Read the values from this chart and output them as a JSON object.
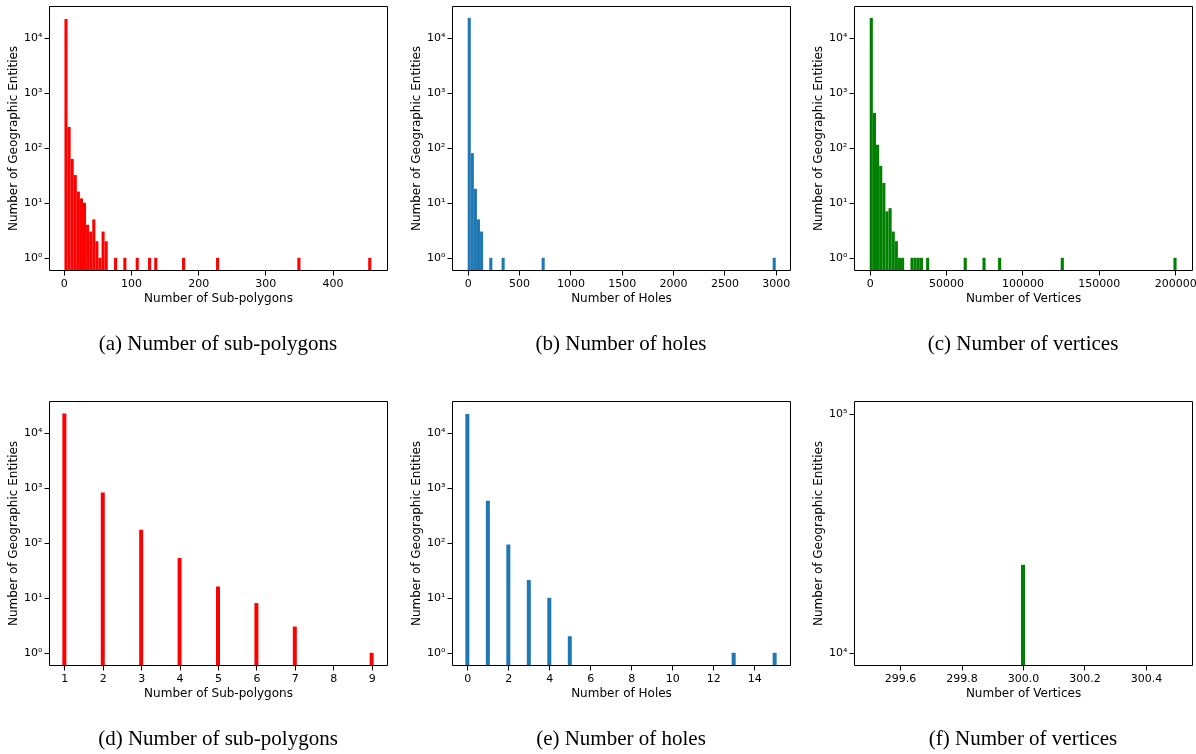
{
  "chart_data": [
    {
      "type": "histogram",
      "title": "(a) Number of sub-polygons",
      "xlabel": "Number of Sub-polygons",
      "ylabel": "Number of Geographic Entities",
      "color": "#ff0000",
      "log": true,
      "bins": [
        1,
        5.6,
        10.2,
        14.8,
        19.4,
        24,
        28.6,
        33.2,
        37.8,
        42.4,
        47,
        51.6,
        56.2,
        60.8,
        65.4,
        74.8,
        79.4,
        88.6,
        93.2,
        107,
        111.6,
        125.4,
        130,
        134.6,
        139.2,
        176,
        180.6,
        226.6,
        231.2,
        347.6,
        352.2,
        453,
        457.6
      ],
      "values": [
        22000,
        240,
        63,
        32,
        16,
        12,
        10,
        4,
        3,
        5,
        2,
        1,
        3,
        2,
        null,
        1,
        null,
        1,
        null,
        1,
        null,
        1,
        null,
        1,
        null,
        1,
        null,
        1,
        null,
        1,
        null,
        1
      ],
      "xlim": [
        -22,
        481
      ],
      "xticks": [
        0,
        100,
        200,
        300,
        400
      ],
      "ylim": [
        0.6,
        38000
      ],
      "yticks": [
        {
          "value": 1,
          "label": "10⁰"
        },
        {
          "value": 10,
          "label": "10¹"
        },
        {
          "value": 100,
          "label": "10²"
        },
        {
          "value": 1000,
          "label": "10³"
        },
        {
          "value": 10000,
          "label": "10⁴"
        }
      ]
    },
    {
      "type": "histogram",
      "title": "(b) Number of holes",
      "xlabel": "Number of Holes",
      "ylabel": "Number of Geographic Entities",
      "color": "#1f77b4",
      "log": true,
      "bins": [
        0,
        30,
        60,
        90,
        120,
        150,
        210,
        240,
        330,
        360,
        720,
        750,
        2970,
        3000
      ],
      "values": [
        23100,
        80,
        18,
        5,
        3,
        null,
        1,
        null,
        1,
        null,
        1,
        null,
        1
      ],
      "xlim": [
        -153,
        3139
      ],
      "xticks": [
        0,
        500,
        1000,
        1500,
        2000,
        2500,
        3000
      ],
      "ylim": [
        0.6,
        38000
      ],
      "yticks": [
        {
          "value": 1,
          "label": "10⁰"
        },
        {
          "value": 10,
          "label": "10¹"
        },
        {
          "value": 100,
          "label": "10²"
        },
        {
          "value": 1000,
          "label": "10³"
        },
        {
          "value": 10000,
          "label": "10⁴"
        }
      ]
    },
    {
      "type": "histogram",
      "title": "(c) Number of vertices",
      "xlabel": "Number of Vertices",
      "ylabel": "Number of Geographic Entities",
      "color": "#008000",
      "log": true,
      "bins": [
        0,
        2050,
        4100,
        6150,
        8200,
        10250,
        12300,
        14350,
        16400,
        18450,
        20500,
        22550,
        26650,
        28700,
        30750,
        32800,
        34850,
        36900,
        38950,
        61500,
        63550,
        73800,
        75850,
        84050,
        86100,
        125050,
        127100,
        198850,
        200900
      ],
      "values": [
        23000,
        431,
        114,
        47,
        23,
        7,
        8,
        3,
        2,
        1,
        1,
        null,
        1,
        1,
        1,
        1,
        null,
        1,
        null,
        1,
        null,
        1,
        null,
        1,
        null,
        1,
        null,
        1
      ],
      "xlim": [
        -10300,
        211000
      ],
      "xticks": [
        0,
        50000,
        100000,
        150000,
        200000
      ],
      "ylim": [
        0.6,
        38000
      ],
      "yticks": [
        {
          "value": 1,
          "label": "10⁰"
        },
        {
          "value": 10,
          "label": "10¹"
        },
        {
          "value": 100,
          "label": "10²"
        },
        {
          "value": 1000,
          "label": "10³"
        },
        {
          "value": 10000,
          "label": "10⁴"
        }
      ]
    },
    {
      "type": "bar",
      "title": "(d) Number of sub-polygons",
      "xlabel": "Number of Sub-polygons",
      "ylabel": "Number of Geographic Entities",
      "color": "#ff0000",
      "log": true,
      "x": [
        1,
        2,
        3,
        4,
        5,
        6,
        7,
        9
      ],
      "values": [
        22500,
        817,
        173,
        53,
        16,
        8,
        3,
        1
      ],
      "xlim": [
        0.6,
        9.4
      ],
      "xticks": [
        1,
        2,
        3,
        4,
        5,
        6,
        7,
        8,
        9
      ],
      "ylim": [
        0.6,
        37800
      ],
      "yticks": [
        {
          "value": 1,
          "label": "10⁰"
        },
        {
          "value": 10,
          "label": "10¹"
        },
        {
          "value": 100,
          "label": "10²"
        },
        {
          "value": 1000,
          "label": "10³"
        },
        {
          "value": 10000,
          "label": "10⁴"
        }
      ]
    },
    {
      "type": "bar",
      "title": "(e) Number of holes",
      "xlabel": "Number of Holes",
      "ylabel": "Number of Geographic Entities",
      "color": "#1f77b4",
      "log": true,
      "x": [
        0,
        1,
        2,
        3,
        4,
        5,
        13,
        15
      ],
      "values": [
        22000,
        580,
        93,
        21,
        10,
        2,
        1,
        1
      ],
      "xlim": [
        -0.75,
        15.75
      ],
      "xticks": [
        0,
        2,
        4,
        6,
        8,
        10,
        12,
        14
      ],
      "ylim": [
        0.6,
        37800
      ],
      "yticks": [
        {
          "value": 1,
          "label": "10⁰"
        },
        {
          "value": 10,
          "label": "10¹"
        },
        {
          "value": 100,
          "label": "10²"
        },
        {
          "value": 1000,
          "label": "10³"
        },
        {
          "value": 10000,
          "label": "10⁴"
        }
      ]
    },
    {
      "type": "bar",
      "title": "(f) Number of vertices",
      "xlabel": "Number of Vertices",
      "ylabel": "Number of Geographic Entities",
      "color": "#008000",
      "log": true,
      "x": [
        300
      ],
      "values": [
        23300
      ],
      "xlim": [
        299.45,
        300.55
      ],
      "xticks": [
        {
          "value": 299.6,
          "label": "299.6"
        },
        {
          "value": 299.8,
          "label": "299.8"
        },
        {
          "value": 300,
          "label": "300.0"
        },
        {
          "value": 300.2,
          "label": "300.2"
        },
        {
          "value": 300.4,
          "label": "300.4"
        }
      ],
      "ylim": [
        8870,
        113000
      ],
      "yticks": [
        {
          "value": 10000,
          "label": "10⁴"
        },
        {
          "value": 100000,
          "label": "10⁵"
        }
      ]
    }
  ]
}
